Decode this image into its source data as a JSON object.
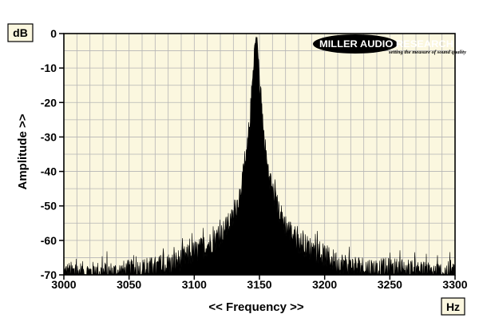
{
  "chart_data": {
    "type": "area",
    "title": "",
    "xlabel": "<< Frequency >>",
    "ylabel": "Amplitude >>",
    "x_unit": "Hz",
    "y_unit": "dB",
    "xlim": [
      3000,
      3300
    ],
    "ylim": [
      -70,
      0
    ],
    "x_ticks": [
      3000,
      3050,
      3100,
      3150,
      3200,
      3250,
      3300
    ],
    "y_ticks": [
      0,
      -10,
      -20,
      -30,
      -40,
      -50,
      -60,
      -70
    ],
    "grid": true,
    "legend": "none",
    "series": [
      {
        "x": [
          3000,
          3020,
          3040,
          3060,
          3080,
          3090,
          3100,
          3110,
          3120,
          3130,
          3135,
          3140,
          3143,
          3146,
          3148,
          3150,
          3153,
          3156,
          3160,
          3165,
          3170,
          3180,
          3190,
          3200,
          3210,
          3220,
          3240,
          3260,
          3280,
          3300
        ],
        "y": [
          -68,
          -68,
          -68,
          -67,
          -66,
          -64,
          -62,
          -60,
          -57,
          -52,
          -45,
          -35,
          -22,
          -4,
          0,
          -12,
          -27,
          -37,
          -44,
          -50,
          -54,
          -59,
          -61,
          -63,
          -65,
          -66,
          -67,
          -67,
          -68,
          -68
        ]
      }
    ],
    "colors": {
      "plot_background": "#fbf7df",
      "fill": "#000000",
      "grid": "#b5b5b5"
    }
  },
  "units": {
    "y_box": "dB",
    "x_box": "Hz"
  },
  "logo": {
    "brand": "MILLER AUDIO RESEARCH",
    "tagline": "setting the measure of sound quality"
  }
}
